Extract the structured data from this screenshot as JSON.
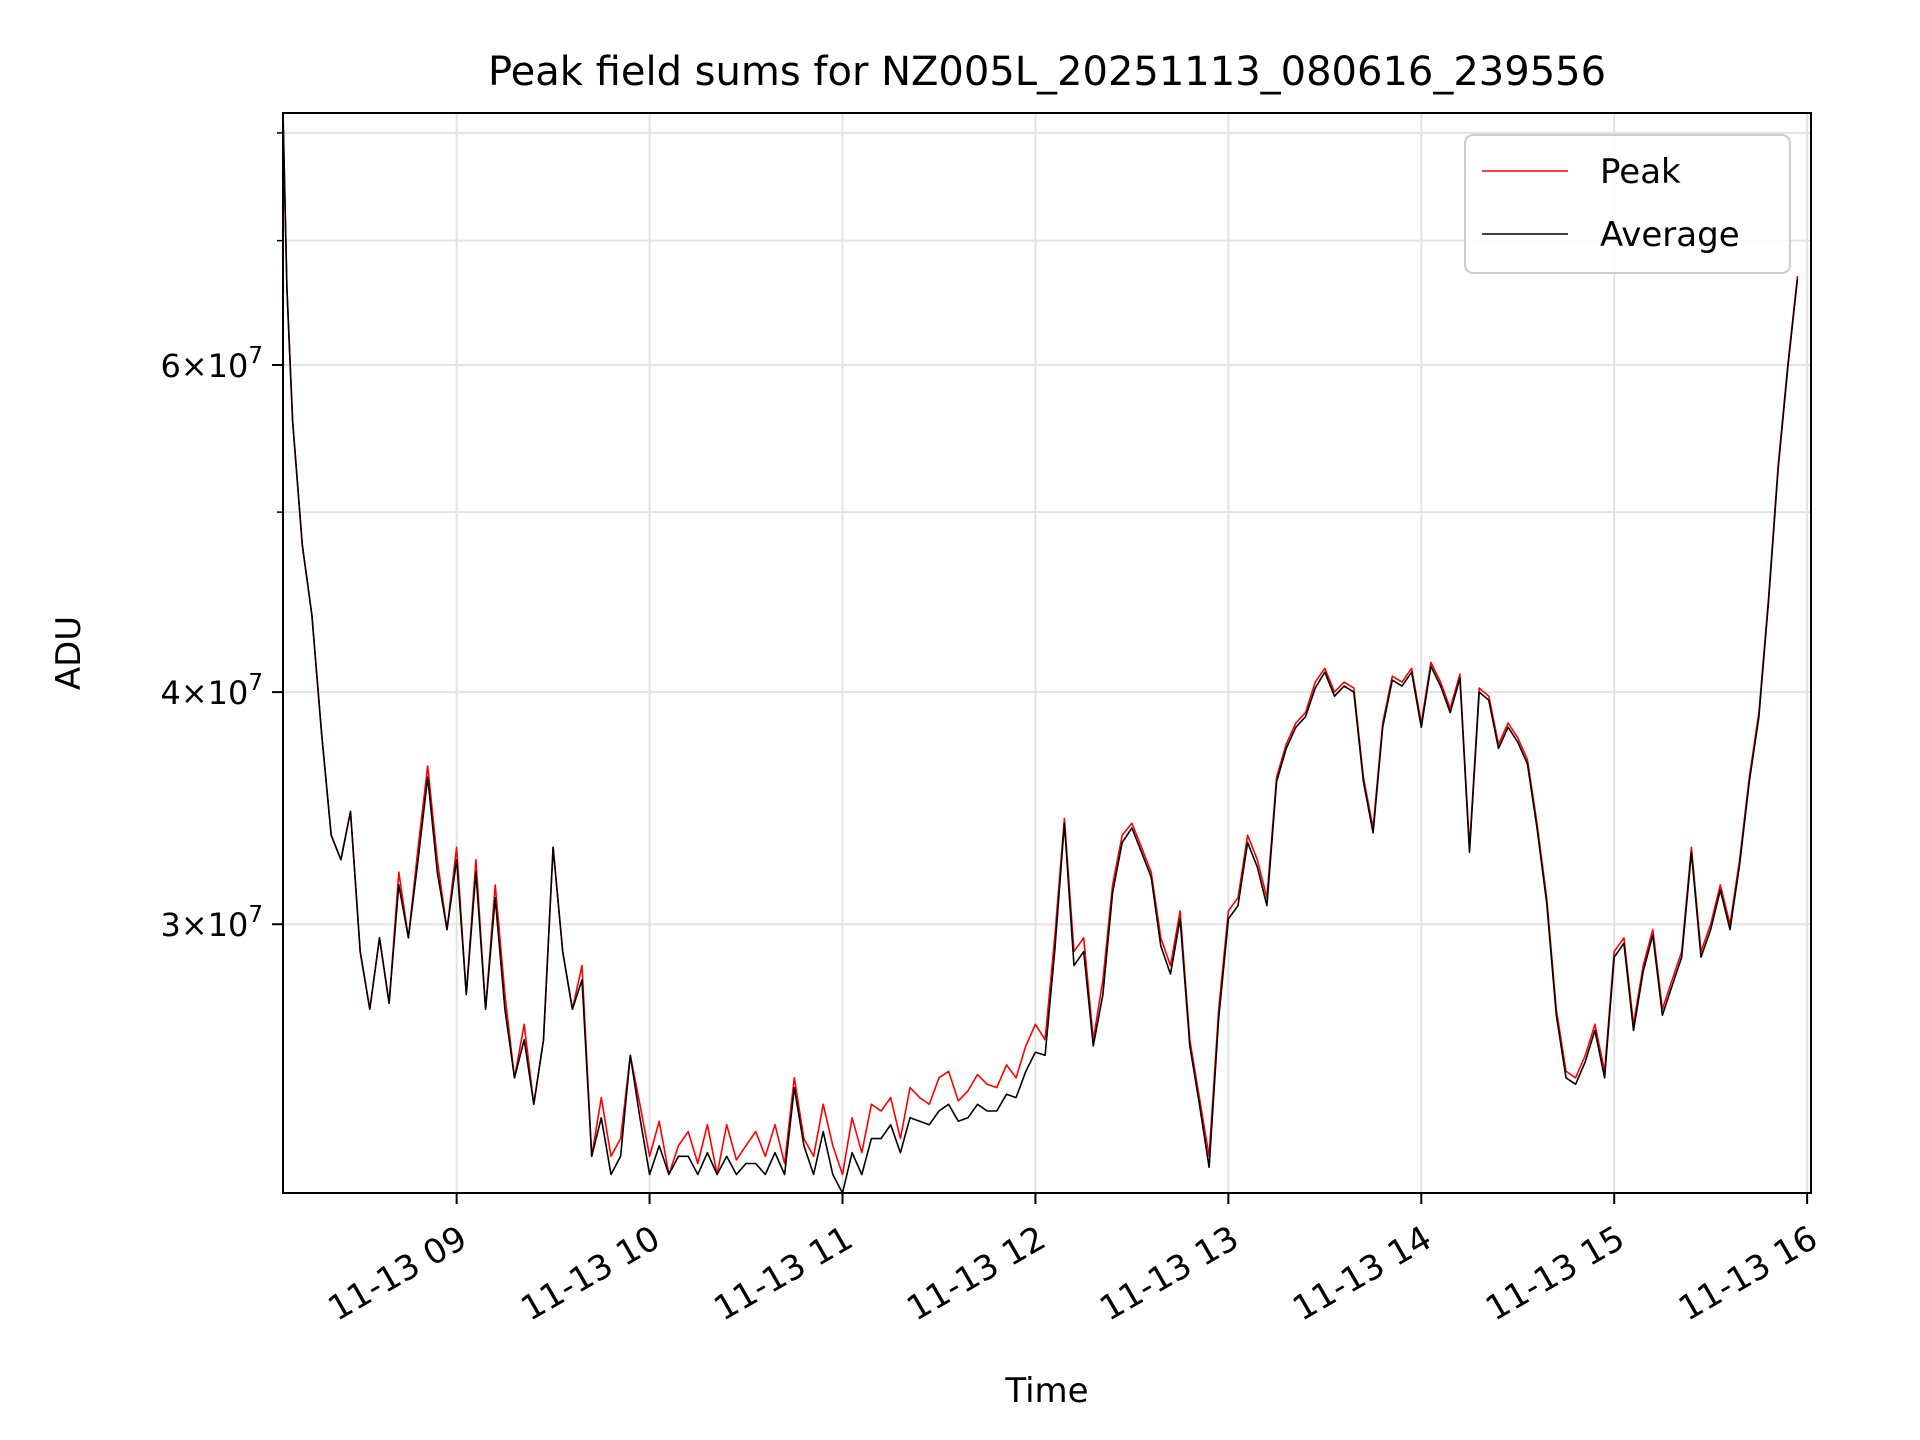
{
  "chart_data": {
    "type": "line",
    "title": "Peak field sums for NZ005L_20251113_080616_239556",
    "xlabel": "Time",
    "ylabel": "ADU",
    "y_scale": "log",
    "ylim": [
      21500000,
      82000000
    ],
    "xlim_hours": [
      8.1,
      16.02
    ],
    "grid": true,
    "legend_position": "top-right",
    "x_ticks": [
      {
        "value": 9,
        "label": "11-13 09"
      },
      {
        "value": 10,
        "label": "11-13 10"
      },
      {
        "value": 11,
        "label": "11-13 11"
      },
      {
        "value": 12,
        "label": "11-13 12"
      },
      {
        "value": 13,
        "label": "11-13 13"
      },
      {
        "value": 14,
        "label": "11-13 14"
      },
      {
        "value": 15,
        "label": "11-13 15"
      },
      {
        "value": 16,
        "label": "11-13 16"
      }
    ],
    "y_major_ticks": [
      {
        "value": 30000000,
        "mantissa": "3",
        "exponent": "7"
      },
      {
        "value": 40000000,
        "mantissa": "4",
        "exponent": "7"
      },
      {
        "value": 60000000,
        "mantissa": "6",
        "exponent": "7"
      }
    ],
    "y_minor_ticks": [
      50000000,
      70000000,
      80000000
    ],
    "times_unit": "hours (11-13)",
    "times": [
      8.1,
      8.12,
      8.15,
      8.2,
      8.25,
      8.3,
      8.35,
      8.4,
      8.45,
      8.5,
      8.55,
      8.6,
      8.65,
      8.7,
      8.75,
      8.8,
      8.85,
      8.9,
      8.95,
      9.0,
      9.05,
      9.1,
      9.15,
      9.2,
      9.25,
      9.3,
      9.35,
      9.4,
      9.45,
      9.5,
      9.55,
      9.6,
      9.65,
      9.7,
      9.75,
      9.8,
      9.85,
      9.9,
      9.95,
      10.0,
      10.05,
      10.1,
      10.15,
      10.2,
      10.25,
      10.3,
      10.35,
      10.4,
      10.45,
      10.5,
      10.55,
      10.6,
      10.65,
      10.7,
      10.75,
      10.8,
      10.85,
      10.9,
      10.95,
      11.0,
      11.05,
      11.1,
      11.15,
      11.2,
      11.25,
      11.3,
      11.35,
      11.4,
      11.45,
      11.5,
      11.55,
      11.6,
      11.65,
      11.7,
      11.75,
      11.8,
      11.85,
      11.9,
      11.95,
      12.0,
      12.05,
      12.1,
      12.15,
      12.2,
      12.25,
      12.3,
      12.35,
      12.4,
      12.45,
      12.5,
      12.55,
      12.6,
      12.65,
      12.7,
      12.75,
      12.8,
      12.85,
      12.9,
      12.95,
      13.0,
      13.05,
      13.1,
      13.15,
      13.2,
      13.25,
      13.3,
      13.35,
      13.4,
      13.45,
      13.5,
      13.55,
      13.6,
      13.65,
      13.7,
      13.75,
      13.8,
      13.85,
      13.9,
      13.95,
      14.0,
      14.05,
      14.1,
      14.15,
      14.2,
      14.25,
      14.3,
      14.35,
      14.4,
      14.45,
      14.5,
      14.55,
      14.6,
      14.65,
      14.7,
      14.75,
      14.8,
      14.85,
      14.9,
      14.95,
      15.0,
      15.05,
      15.1,
      15.15,
      15.2,
      15.25,
      15.3,
      15.35,
      15.4,
      15.45,
      15.5,
      15.55,
      15.6,
      15.65,
      15.7,
      15.75,
      15.8,
      15.85,
      15.9,
      15.95,
      16.0,
      16.02
    ],
    "series": [
      {
        "name": "Peak",
        "color": "#ff0000",
        "values": [
          82000000,
          66000000,
          56000000,
          48000000,
          44000000,
          38000000,
          33500000,
          32500000,
          34500000,
          29000000,
          27000000,
          29500000,
          27200000,
          32000000,
          29500000,
          33000000,
          36500000,
          32500000,
          29800000,
          33000000,
          27500000,
          32500000,
          27000000,
          31500000,
          27500000,
          24800000,
          26500000,
          24000000,
          26000000,
          33000000,
          29000000,
          27000000,
          28500000,
          22500000,
          24200000,
          22500000,
          23000000,
          25500000,
          24000000,
          22500000,
          23500000,
          22000000,
          22800000,
          23200000,
          22300000,
          23400000,
          22000000,
          23400000,
          22400000,
          22800000,
          23200000,
          22500000,
          23400000,
          22300000,
          24800000,
          23000000,
          22500000,
          24000000,
          22800000,
          22000000,
          23600000,
          22600000,
          24000000,
          23800000,
          24200000,
          23000000,
          24500000,
          24200000,
          24000000,
          24800000,
          25000000,
          24100000,
          24400000,
          24900000,
          24600000,
          24500000,
          25200000,
          24800000,
          25800000,
          26500000,
          26000000,
          29500000,
          34200000,
          29000000,
          29500000,
          26000000,
          28000000,
          31500000,
          33500000,
          34000000,
          33000000,
          32000000,
          29500000,
          28500000,
          30500000,
          26000000,
          24200000,
          22500000,
          27000000,
          30500000,
          31000000,
          33500000,
          32500000,
          31000000,
          36000000,
          37500000,
          38500000,
          39000000,
          40500000,
          41200000,
          40000000,
          40500000,
          40200000,
          36000000,
          33800000,
          38500000,
          40800000,
          40500000,
          41200000,
          38500000,
          41500000,
          40500000,
          39200000,
          40900000,
          33000000,
          40200000,
          39800000,
          37500000,
          38500000,
          37800000,
          36800000,
          34000000,
          31000000,
          27000000,
          25000000,
          24800000,
          25500000,
          26500000,
          25000000,
          29000000,
          29500000,
          26500000,
          28500000,
          29800000,
          27000000,
          28000000,
          29000000,
          33000000,
          29000000,
          30000000,
          31500000,
          30000000,
          32500000,
          36000000,
          39000000,
          45000000,
          53000000,
          60000000,
          67000000
        ]
      },
      {
        "name": "Average",
        "color": "#000000",
        "values": [
          82000000,
          66000000,
          56000000,
          48000000,
          44000000,
          38000000,
          33500000,
          32500000,
          34500000,
          29000000,
          27000000,
          29500000,
          27200000,
          31500000,
          29500000,
          32500000,
          36000000,
          32000000,
          29800000,
          32500000,
          27500000,
          32000000,
          27000000,
          31000000,
          27000000,
          24800000,
          26000000,
          24000000,
          26000000,
          33000000,
          29000000,
          27000000,
          28000000,
          22500000,
          23600000,
          22000000,
          22500000,
          25500000,
          23600000,
          22000000,
          22800000,
          22000000,
          22500000,
          22500000,
          22000000,
          22600000,
          22000000,
          22500000,
          22000000,
          22300000,
          22300000,
          22000000,
          22600000,
          22000000,
          24500000,
          22800000,
          22000000,
          23200000,
          22000000,
          21500000,
          22600000,
          22000000,
          23000000,
          23000000,
          23400000,
          22600000,
          23600000,
          23500000,
          23400000,
          23800000,
          24000000,
          23500000,
          23600000,
          24000000,
          23800000,
          23800000,
          24300000,
          24200000,
          25000000,
          25600000,
          25500000,
          29000000,
          34000000,
          28500000,
          29000000,
          25800000,
          27500000,
          31200000,
          33200000,
          33800000,
          32800000,
          31800000,
          29200000,
          28200000,
          30200000,
          25800000,
          24000000,
          22200000,
          26700000,
          30200000,
          30700000,
          33200000,
          32200000,
          30700000,
          35800000,
          37300000,
          38300000,
          38800000,
          40200000,
          41000000,
          39800000,
          40300000,
          40000000,
          35800000,
          33600000,
          38300000,
          40600000,
          40300000,
          41000000,
          38300000,
          41300000,
          40300000,
          39000000,
          40700000,
          32800000,
          40000000,
          39600000,
          37300000,
          38300000,
          37600000,
          36600000,
          33800000,
          30800000,
          26800000,
          24800000,
          24600000,
          25300000,
          26300000,
          24800000,
          28800000,
          29300000,
          26300000,
          28300000,
          29600000,
          26800000,
          27800000,
          28800000,
          32800000,
          28800000,
          29800000,
          31300000,
          29800000,
          32300000,
          35800000,
          38800000,
          44800000,
          52800000,
          59800000,
          66800000
        ]
      }
    ]
  }
}
